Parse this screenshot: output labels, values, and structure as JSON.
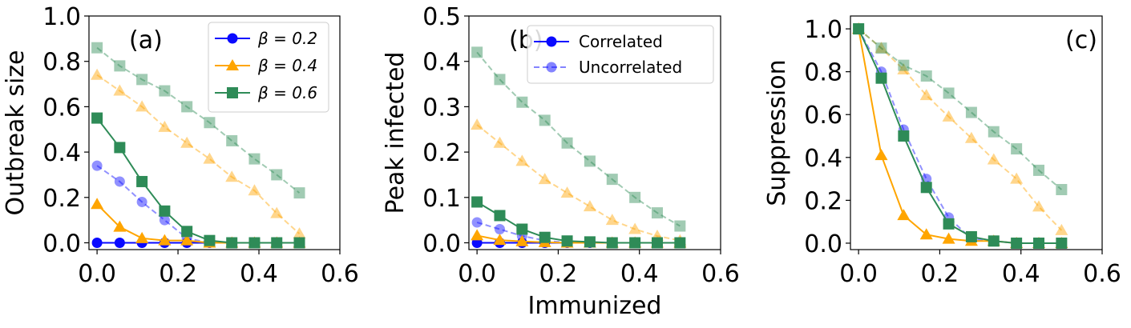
{
  "figure": {
    "shared_xlabel": "Immunized",
    "legend_beta": [
      {
        "label": "β = 0.2",
        "color": "#0a0aff",
        "marker": "circle"
      },
      {
        "label": "β = 0.4",
        "color": "#ffa500",
        "marker": "triangle"
      },
      {
        "label": "β = 0.6",
        "color": "#2e8b57",
        "marker": "square"
      }
    ],
    "legend_style": [
      {
        "label": "Correlated",
        "dashed": false
      },
      {
        "label": "Uncorrelated",
        "dashed": true
      }
    ]
  },
  "chart_data": [
    {
      "type": "line",
      "panel_label": "(a)",
      "ylabel": "Outbreak size",
      "xlabel": "",
      "xlim": [
        -0.02,
        0.6
      ],
      "ylim": [
        -0.03,
        1.0
      ],
      "xticks": [
        "0.0",
        "0.2",
        "0.4",
        "0.6"
      ],
      "yticks": [
        "0.0",
        "0.2",
        "0.4",
        "0.6",
        "0.8",
        "1.0"
      ],
      "x": [
        0.0,
        0.056,
        0.111,
        0.167,
        0.222,
        0.278,
        0.333,
        0.389,
        0.444,
        0.5
      ],
      "legend": "beta",
      "series": [
        {
          "name": "β = 0.2 correlated",
          "beta": 0.2,
          "dashed": false,
          "values": [
            0.0,
            0.0,
            0.0,
            0.0,
            0.0,
            0.0,
            0.0,
            0.0,
            0.0,
            0.0
          ]
        },
        {
          "name": "β = 0.2 uncorrelated",
          "beta": 0.2,
          "dashed": true,
          "values": [
            0.34,
            0.27,
            0.18,
            0.1,
            0.02,
            0.0,
            0.0,
            0.0,
            0.0,
            0.0
          ]
        },
        {
          "name": "β = 0.4 correlated",
          "beta": 0.4,
          "dashed": false,
          "values": [
            0.17,
            0.07,
            0.02,
            0.01,
            0.01,
            0.0,
            0.0,
            0.0,
            0.0,
            0.0
          ]
        },
        {
          "name": "β = 0.4 uncorrelated",
          "beta": 0.4,
          "dashed": true,
          "values": [
            0.74,
            0.67,
            0.6,
            0.51,
            0.44,
            0.37,
            0.29,
            0.23,
            0.13,
            0.04
          ]
        },
        {
          "name": "β = 0.6 correlated",
          "beta": 0.6,
          "dashed": false,
          "values": [
            0.55,
            0.42,
            0.27,
            0.14,
            0.05,
            0.01,
            0.0,
            0.0,
            0.0,
            0.0
          ]
        },
        {
          "name": "β = 0.6 uncorrelated",
          "beta": 0.6,
          "dashed": true,
          "values": [
            0.86,
            0.78,
            0.72,
            0.67,
            0.6,
            0.53,
            0.45,
            0.37,
            0.3,
            0.22
          ]
        }
      ]
    },
    {
      "type": "line",
      "panel_label": "(b)",
      "ylabel": "Peak infected",
      "xlabel": "",
      "xlim": [
        -0.02,
        0.6
      ],
      "ylim": [
        -0.015,
        0.5
      ],
      "xticks": [
        "0.0",
        "0.2",
        "0.4",
        "0.6"
      ],
      "yticks": [
        "0.0",
        "0.1",
        "0.2",
        "0.3",
        "0.4",
        "0.5"
      ],
      "x": [
        0.0,
        0.056,
        0.111,
        0.167,
        0.222,
        0.278,
        0.333,
        0.389,
        0.444,
        0.5
      ],
      "legend": "style",
      "series": [
        {
          "name": "β = 0.2 correlated",
          "beta": 0.2,
          "dashed": false,
          "values": [
            0.0,
            0.0,
            0.0,
            0.0,
            0.0,
            0.0,
            0.0,
            0.0,
            0.0,
            0.0
          ]
        },
        {
          "name": "β = 0.2 uncorrelated",
          "beta": 0.2,
          "dashed": true,
          "values": [
            0.045,
            0.03,
            0.015,
            0.005,
            0.0,
            0.0,
            0.0,
            0.0,
            0.0,
            0.0
          ]
        },
        {
          "name": "β = 0.4 correlated",
          "beta": 0.4,
          "dashed": false,
          "values": [
            0.016,
            0.006,
            0.003,
            0.001,
            0.0,
            0.0,
            0.0,
            0.0,
            0.0,
            0.0
          ]
        },
        {
          "name": "β = 0.4 uncorrelated",
          "beta": 0.4,
          "dashed": true,
          "values": [
            0.26,
            0.22,
            0.18,
            0.14,
            0.11,
            0.08,
            0.05,
            0.03,
            0.015,
            0.005
          ]
        },
        {
          "name": "β = 0.6 correlated",
          "beta": 0.6,
          "dashed": false,
          "values": [
            0.09,
            0.06,
            0.03,
            0.012,
            0.004,
            0.002,
            0.0,
            0.0,
            0.0,
            0.0
          ]
        },
        {
          "name": "β = 0.6 uncorrelated",
          "beta": 0.6,
          "dashed": true,
          "values": [
            0.42,
            0.36,
            0.31,
            0.27,
            0.22,
            0.18,
            0.14,
            0.1,
            0.066,
            0.037
          ]
        }
      ]
    },
    {
      "type": "line",
      "panel_label": "(c)",
      "ylabel": "Suppression",
      "xlabel": "",
      "xlim": [
        -0.02,
        0.6
      ],
      "ylim": [
        -0.03,
        1.06
      ],
      "xticks": [
        "0.0",
        "0.2",
        "0.4",
        "0.6"
      ],
      "yticks": [
        "0.0",
        "0.2",
        "0.4",
        "0.6",
        "0.8",
        "1.0"
      ],
      "x": [
        0.0,
        0.056,
        0.111,
        0.167,
        0.222,
        0.278,
        0.333,
        0.389,
        0.444,
        0.5
      ],
      "legend": "none",
      "series": [
        {
          "name": "β = 0.2 uncorrelated",
          "beta": 0.2,
          "dashed": true,
          "values": [
            1.0,
            0.8,
            0.53,
            0.3,
            0.12,
            0.02,
            0.01,
            0.0,
            0.0,
            0.0
          ]
        },
        {
          "name": "β = 0.4 correlated",
          "beta": 0.4,
          "dashed": false,
          "values": [
            1.0,
            0.41,
            0.13,
            0.04,
            0.02,
            0.01,
            0.01,
            0.0,
            0.0,
            0.0
          ]
        },
        {
          "name": "β = 0.4 uncorrelated",
          "beta": 0.4,
          "dashed": true,
          "values": [
            1.0,
            0.91,
            0.81,
            0.69,
            0.59,
            0.49,
            0.39,
            0.3,
            0.17,
            0.06
          ]
        },
        {
          "name": "β = 0.6 correlated",
          "beta": 0.6,
          "dashed": false,
          "values": [
            1.0,
            0.77,
            0.5,
            0.26,
            0.09,
            0.03,
            0.01,
            0.0,
            0.0,
            0.0
          ]
        },
        {
          "name": "β = 0.6 uncorrelated",
          "beta": 0.6,
          "dashed": true,
          "values": [
            1.0,
            0.91,
            0.83,
            0.78,
            0.7,
            0.61,
            0.52,
            0.44,
            0.34,
            0.25
          ]
        }
      ]
    }
  ]
}
